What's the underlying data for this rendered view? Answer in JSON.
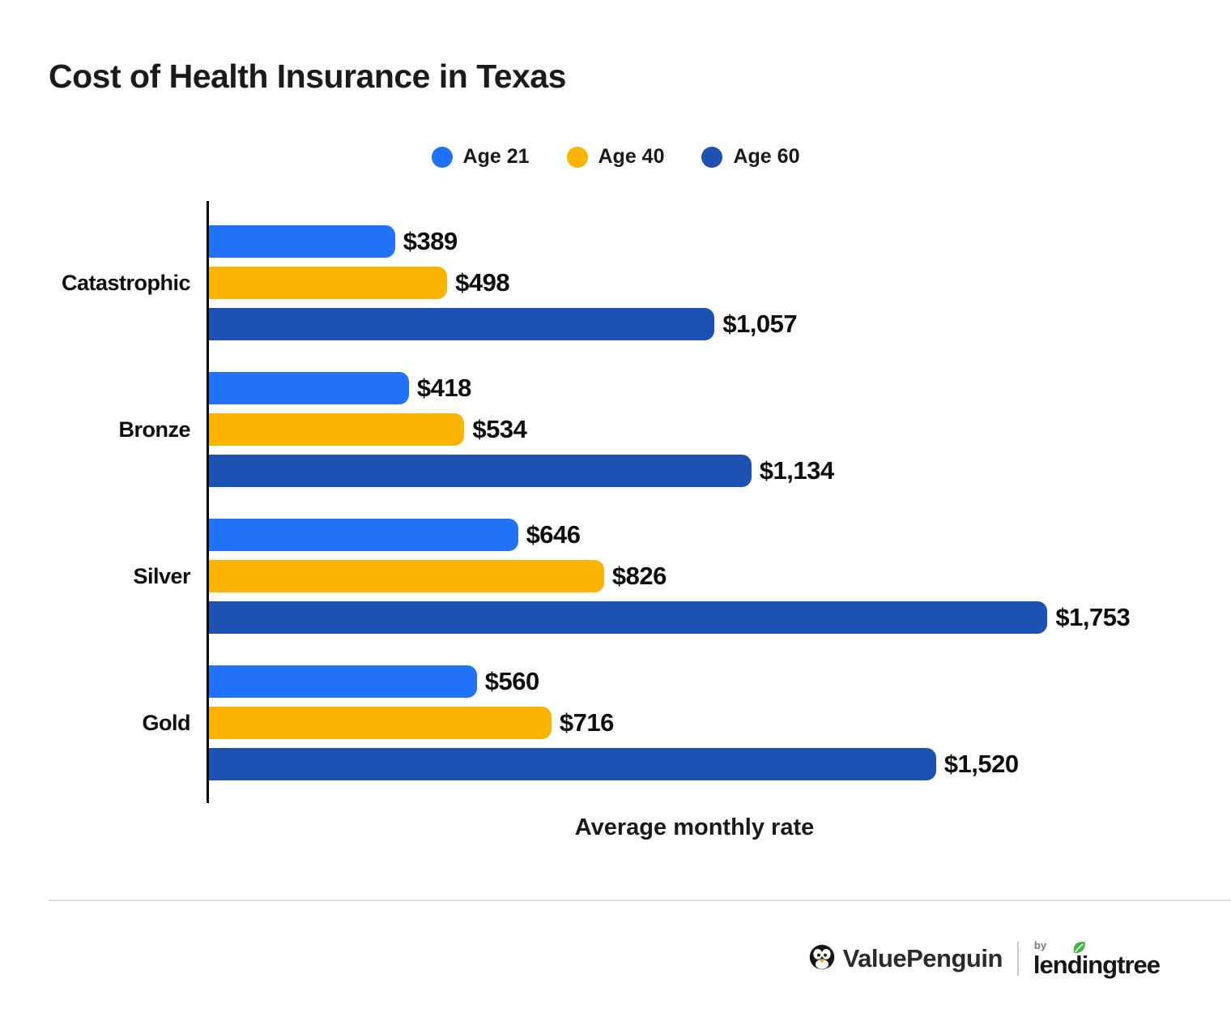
{
  "page": {
    "title": "Cost of Health Insurance in Texas",
    "background": "#ffffff"
  },
  "legend": {
    "items": [
      {
        "label": "Age 21",
        "color": "#2272F8"
      },
      {
        "label": "Age 40",
        "color": "#FAB400"
      },
      {
        "label": "Age 60",
        "color": "#1D52B3"
      }
    ]
  },
  "chart_data": {
    "type": "bar",
    "orientation": "horizontal",
    "title": "Cost of Health Insurance in Texas",
    "xlabel": "Average monthly rate",
    "ylabel": "",
    "categories": [
      "Catastrophic",
      "Bronze",
      "Silver",
      "Gold"
    ],
    "series": [
      {
        "name": "Age 21",
        "color": "#2272F8",
        "values": [
          389,
          418,
          646,
          560
        ],
        "labels": [
          "$389",
          "$418",
          "$646",
          "$560"
        ]
      },
      {
        "name": "Age 40",
        "color": "#FAB400",
        "values": [
          498,
          534,
          826,
          716
        ],
        "labels": [
          "$498",
          "$534",
          "$826",
          "$716"
        ]
      },
      {
        "name": "Age 60",
        "color": "#1D52B3",
        "values": [
          1057,
          1134,
          1753,
          1520
        ],
        "labels": [
          "$1,057",
          "$1,134",
          "$1,753",
          "$1,520"
        ]
      }
    ],
    "xlim": [
      0,
      2035
    ],
    "grid": false,
    "legend_position": "top",
    "value_labels": "outside-end"
  },
  "footer": {
    "brand": "ValuePenguin",
    "by_label": "by",
    "partner": "lendingtree",
    "brand_color": "#2b2b2b",
    "leaf_color": "#3EB649",
    "beak_color": "#F5A81C"
  }
}
